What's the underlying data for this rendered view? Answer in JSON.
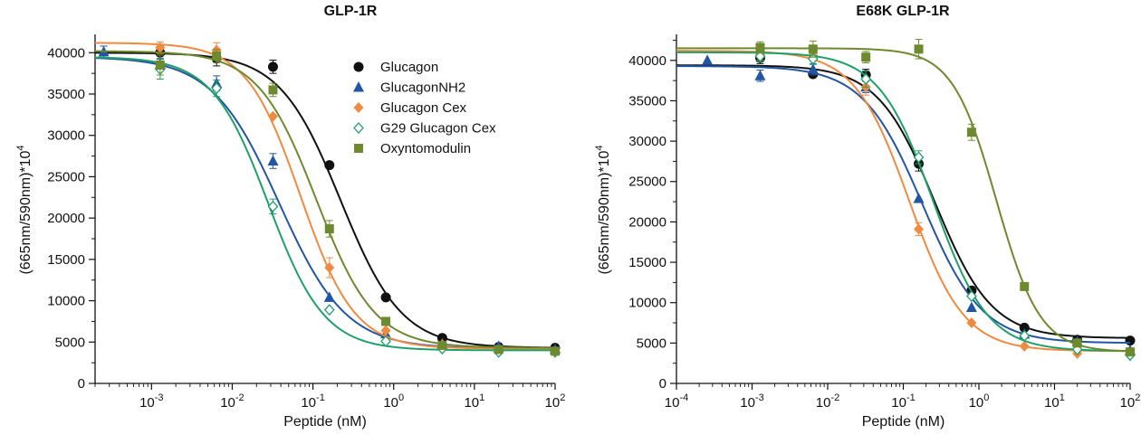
{
  "chart_data": [
    {
      "type": "scatter",
      "title": "GLP-1R",
      "xlabel": "Peptide (nM)",
      "ylabel": "(665nm/590nm)*10",
      "ylabel_sup": "4",
      "x_scale": "log",
      "xlim": [
        0.0002,
        100
      ],
      "ylim": [
        0,
        42000
      ],
      "yticks": [
        0,
        5000,
        10000,
        15000,
        20000,
        25000,
        30000,
        35000,
        40000
      ],
      "ytick_labels": [
        "0",
        "5000",
        "10000",
        "15000",
        "20000",
        "25000",
        "30000",
        "35000",
        "40000"
      ],
      "xticks": [
        0.001,
        0.01,
        0.1,
        1,
        10,
        100
      ],
      "xtick_labels": [
        {
          "base": "10",
          "exp": "-3"
        },
        {
          "base": "10",
          "exp": "-2"
        },
        {
          "base": "10",
          "exp": "-1"
        },
        {
          "base": "10",
          "exp": "0"
        },
        {
          "base": "10",
          "exp": "1"
        },
        {
          "base": "10",
          "exp": "2"
        }
      ],
      "legend_position": "top-right",
      "series": [
        {
          "name": "Glucagon",
          "color": "#111111",
          "marker": "circle",
          "x": [
            0.00128,
            0.0064,
            0.032,
            0.16,
            0.8,
            4,
            20,
            100
          ],
          "y": [
            40000,
            39300,
            38300,
            26400,
            10400,
            5500,
            4400,
            4300
          ],
          "err": [
            800,
            900,
            800,
            0,
            0,
            0,
            0,
            0
          ],
          "fit": {
            "top": 40000,
            "bottom": 4300,
            "ec50": 0.22,
            "hill": 1.15
          }
        },
        {
          "name": "GlucagonNH2",
          "color": "#2255a4",
          "marker": "triangle",
          "x": [
            0.000256,
            0.00128,
            0.0064,
            0.032,
            0.16,
            0.8,
            4,
            20,
            100
          ],
          "y": [
            40100,
            38600,
            36300,
            26900,
            10400,
            6000,
            4800,
            4500,
            4100
          ],
          "err": [
            700,
            700,
            900,
            900,
            0,
            0,
            0,
            0,
            0
          ],
          "fit": {
            "top": 39500,
            "bottom": 4200,
            "ec50": 0.038,
            "hill": 1.05
          }
        },
        {
          "name": "Glucagon Cex",
          "color": "#f08a40",
          "marker": "diamond",
          "x": [
            0.00128,
            0.0064,
            0.032,
            0.16,
            0.8,
            4,
            20,
            100
          ],
          "y": [
            40600,
            40300,
            32300,
            14000,
            6400,
            4700,
            3900,
            3800
          ],
          "err": [
            700,
            900,
            0,
            1200,
            0,
            0,
            0,
            0
          ],
          "fit": {
            "top": 41200,
            "bottom": 4200,
            "ec50": 0.07,
            "hill": 1.3
          }
        },
        {
          "name": "G29 Glucagon Cex",
          "color": "#1fa06a",
          "marker": "diamond-open",
          "x": [
            0.00128,
            0.0064,
            0.032,
            0.16,
            0.8,
            4,
            20,
            100
          ],
          "y": [
            38000,
            35700,
            21400,
            8900,
            5100,
            4200,
            3800,
            3800
          ],
          "err": [
            1200,
            1000,
            900,
            0,
            0,
            0,
            0,
            0
          ],
          "fit": {
            "top": 39500,
            "bottom": 4000,
            "ec50": 0.028,
            "hill": 1.25
          }
        },
        {
          "name": "Oxyntomodulin",
          "color": "#6e8a2e",
          "marker": "square",
          "x": [
            0.00128,
            0.0064,
            0.032,
            0.16,
            0.8,
            4,
            20,
            100
          ],
          "y": [
            38500,
            39600,
            35500,
            18700,
            7500,
            4600,
            4100,
            3900
          ],
          "err": [
            1200,
            800,
            800,
            1000,
            0,
            0,
            0,
            0
          ],
          "fit": {
            "top": 40200,
            "bottom": 4300,
            "ec50": 0.11,
            "hill": 1.2
          }
        }
      ]
    },
    {
      "type": "scatter",
      "title": "E68K GLP-1R",
      "xlabel": "Peptide (nM)",
      "ylabel": "(665nm/590nm)*10",
      "ylabel_sup": "4",
      "x_scale": "log",
      "xlim": [
        0.0001,
        100
      ],
      "ylim": [
        0,
        43000
      ],
      "yticks": [
        0,
        5000,
        10000,
        15000,
        20000,
        25000,
        30000,
        35000,
        40000
      ],
      "ytick_labels": [
        "0",
        "5000",
        "10000",
        "15000",
        "20000",
        "25000",
        "30000",
        "35000",
        "40000"
      ],
      "xticks": [
        0.0001,
        0.001,
        0.01,
        0.1,
        1,
        10,
        100
      ],
      "xtick_labels": [
        {
          "base": "10",
          "exp": "-4"
        },
        {
          "base": "10",
          "exp": "-3"
        },
        {
          "base": "10",
          "exp": "-2"
        },
        {
          "base": "10",
          "exp": "-1"
        },
        {
          "base": "10",
          "exp": "0"
        },
        {
          "base": "10",
          "exp": "1"
        },
        {
          "base": "10",
          "exp": "2"
        }
      ],
      "series": [
        {
          "name": "Glucagon",
          "color": "#111111",
          "marker": "circle",
          "x": [
            0.00128,
            0.0064,
            0.032,
            0.16,
            0.8,
            4,
            20,
            100
          ],
          "y": [
            40300,
            38300,
            38200,
            27200,
            11500,
            6900,
            5400,
            5300
          ],
          "err": [
            700,
            0,
            700,
            900,
            0,
            0,
            0,
            0
          ],
          "fit": {
            "top": 39400,
            "bottom": 5600,
            "ec50": 0.26,
            "hill": 1.15
          }
        },
        {
          "name": "GlucagonNH2",
          "color": "#2255a4",
          "marker": "triangle",
          "x": [
            0.000256,
            0.00128,
            0.0064,
            0.032,
            0.16,
            0.8,
            4,
            20,
            100
          ],
          "y": [
            40000,
            38100,
            38900,
            36700,
            22900,
            9400,
            6100,
            5200,
            4100
          ],
          "err": [
            0,
            700,
            700,
            700,
            0,
            0,
            0,
            0,
            0
          ],
          "fit": {
            "top": 39300,
            "bottom": 5000,
            "ec50": 0.18,
            "hill": 1.1
          }
        },
        {
          "name": "Glucagon Cex",
          "color": "#f08a40",
          "marker": "diamond",
          "x": [
            0.00128,
            0.0064,
            0.032,
            0.16,
            0.8,
            4,
            20,
            100
          ],
          "y": [
            40700,
            40600,
            36700,
            19100,
            7500,
            4600,
            3700,
            3700
          ],
          "err": [
            700,
            700,
            1000,
            800,
            0,
            0,
            0,
            0
          ],
          "fit": {
            "top": 41200,
            "bottom": 4000,
            "ec50": 0.12,
            "hill": 1.2
          }
        },
        {
          "name": "G29 Glucagon Cex",
          "color": "#1fa06a",
          "marker": "diamond-open",
          "x": [
            0.00128,
            0.0064,
            0.032,
            0.16,
            0.8,
            4,
            20,
            100
          ],
          "y": [
            40500,
            40200,
            37700,
            28000,
            10800,
            5900,
            4200,
            3500
          ],
          "err": [
            700,
            700,
            1000,
            800,
            0,
            0,
            0,
            0
          ],
          "fit": {
            "top": 41000,
            "bottom": 4000,
            "ec50": 0.25,
            "hill": 1.2
          }
        },
        {
          "name": "Oxyntomodulin",
          "color": "#6e8a2e",
          "marker": "square",
          "x": [
            0.00128,
            0.0064,
            0.032,
            0.16,
            0.8,
            4,
            20,
            100
          ],
          "y": [
            41600,
            41400,
            40400,
            41400,
            31100,
            12000,
            5000,
            3900
          ],
          "err": [
            700,
            1000,
            700,
            1200,
            1000,
            0,
            0,
            0
          ],
          "fit": {
            "top": 41500,
            "bottom": 3900,
            "ec50": 1.7,
            "hill": 1.5
          }
        }
      ]
    }
  ]
}
